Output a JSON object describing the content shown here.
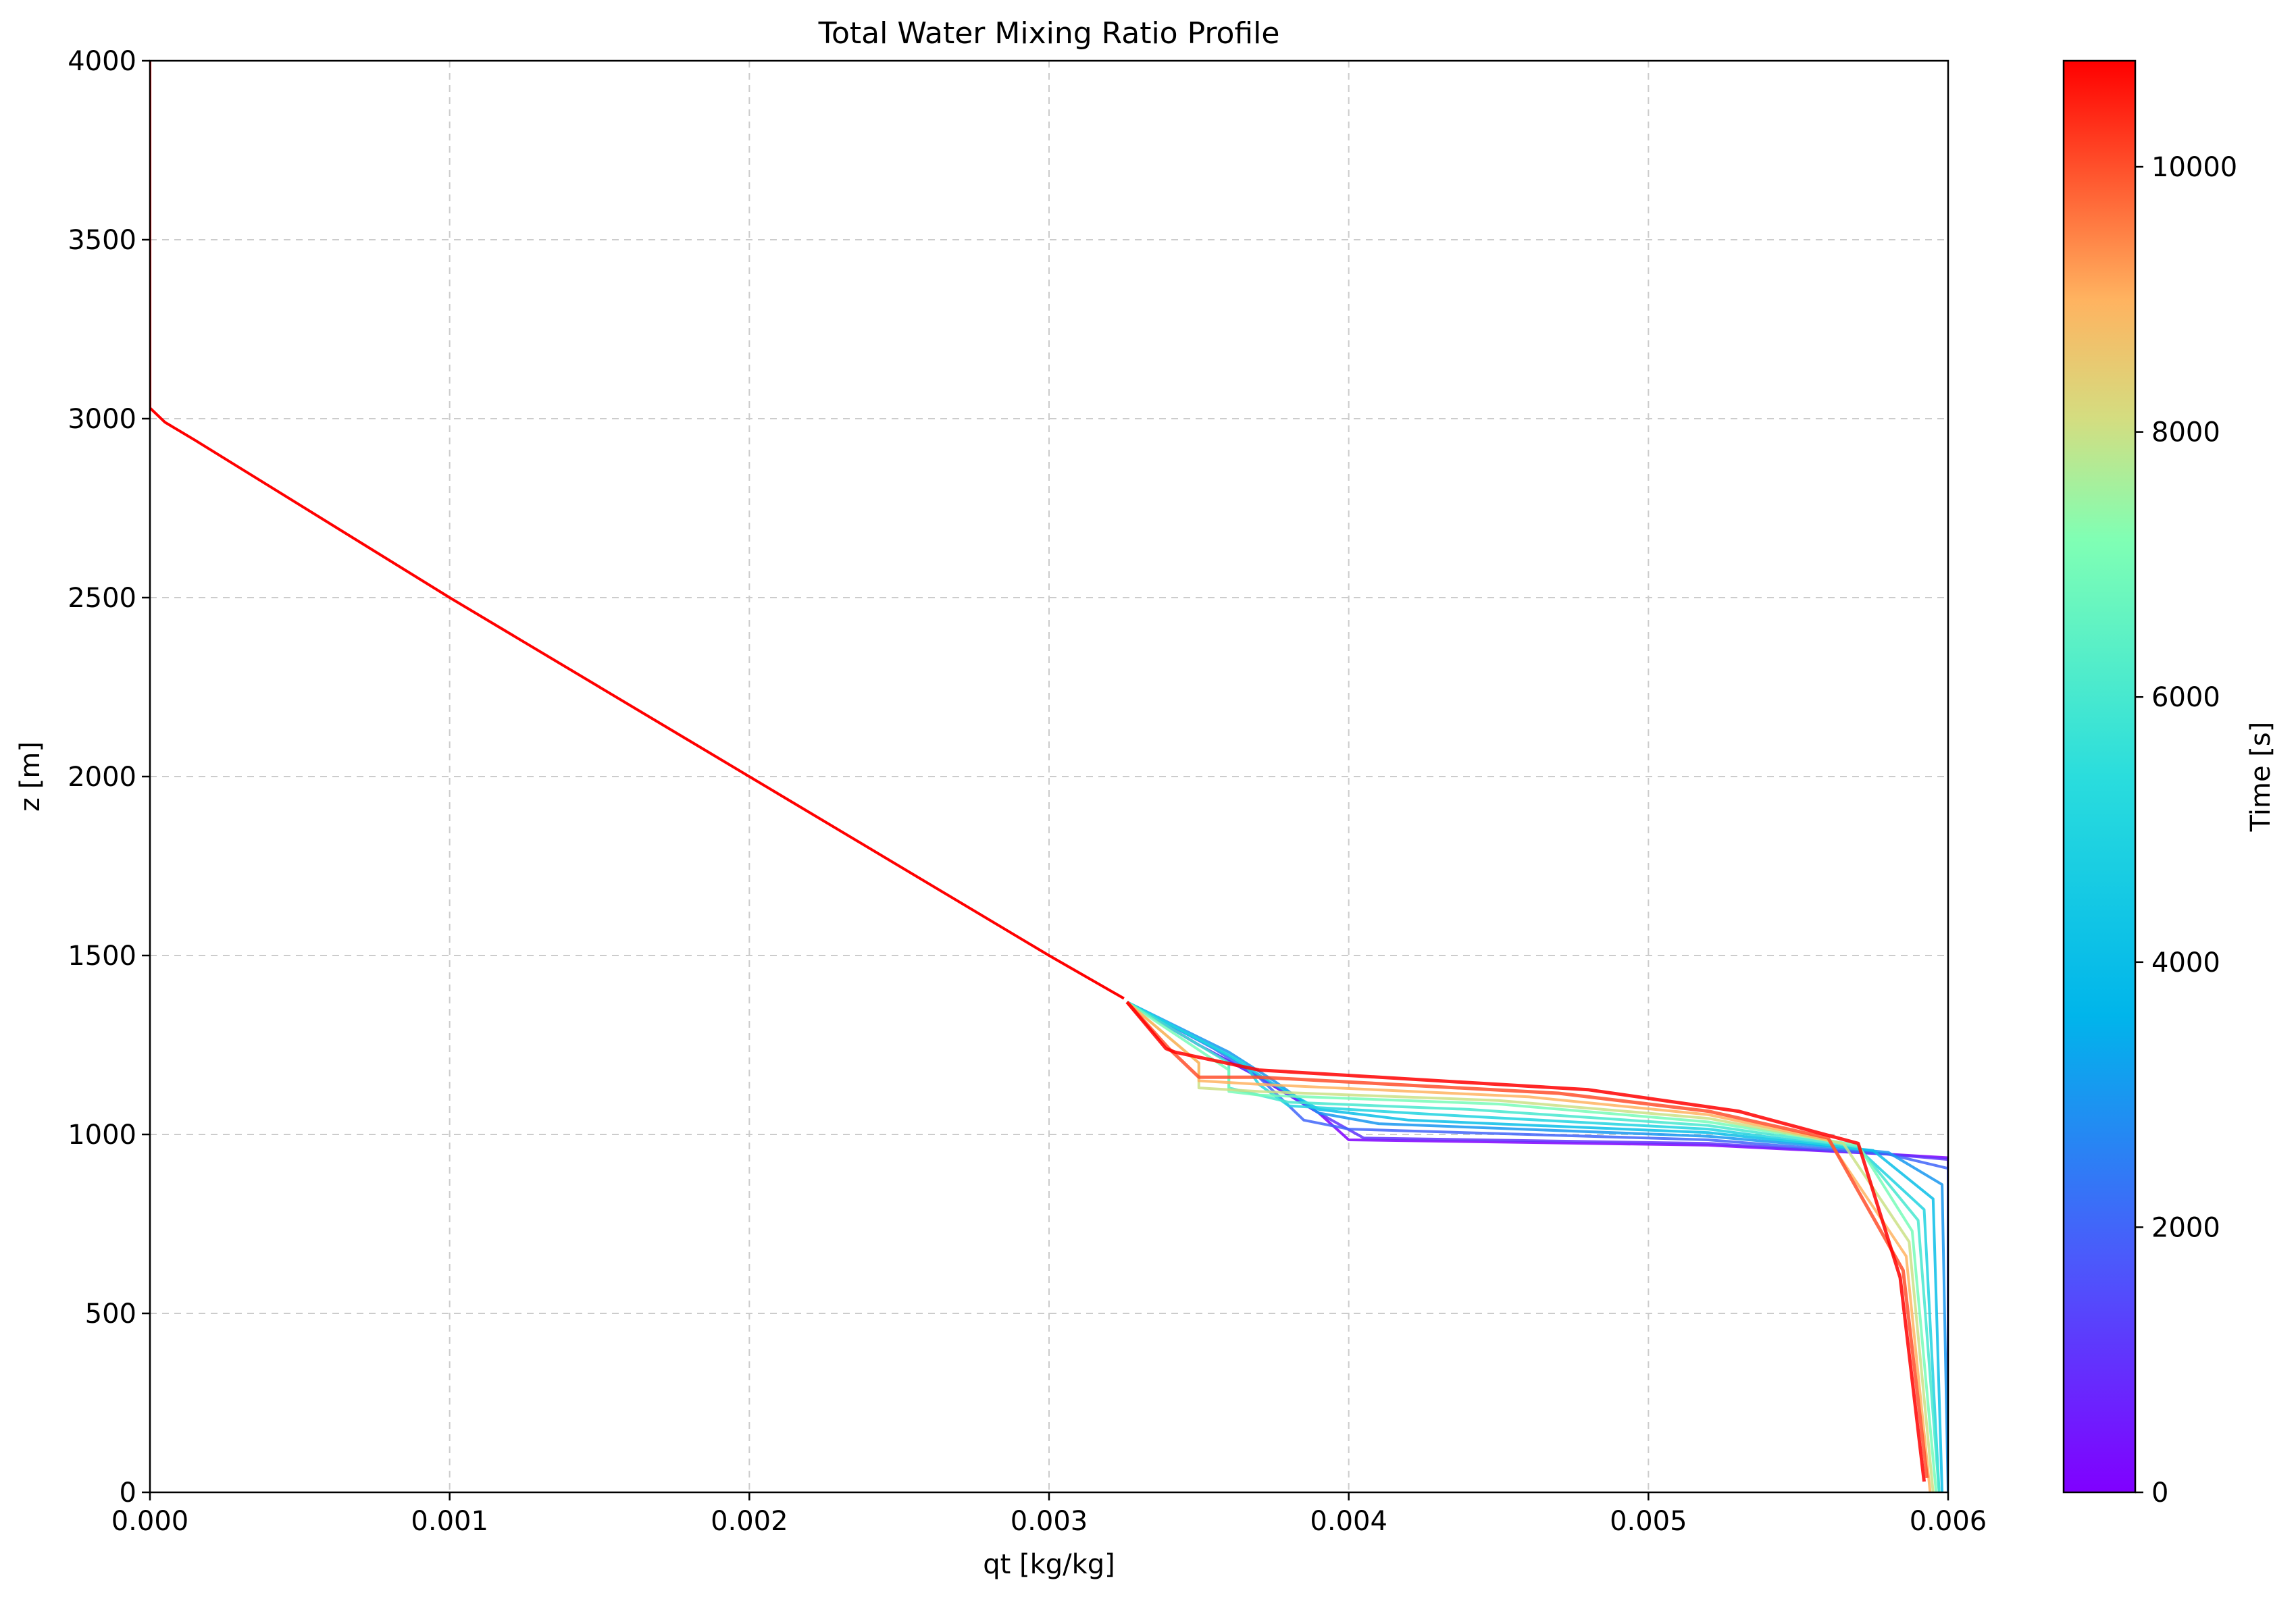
{
  "chart_data": {
    "type": "line",
    "title": "Total Water Mixing Ratio Profile",
    "xlabel": "qt [kg/kg]",
    "ylabel": "z [m]",
    "xlim": [
      0.0,
      0.006
    ],
    "ylim": [
      0,
      4000
    ],
    "x_ticks": [
      "0.000",
      "0.001",
      "0.002",
      "0.003",
      "0.004",
      "0.005",
      "0.006"
    ],
    "y_ticks": [
      "0",
      "500",
      "1000",
      "1500",
      "2000",
      "2500",
      "3000",
      "3500",
      "4000"
    ],
    "grid": true,
    "colorbar": {
      "label": "Time [s]",
      "colormap": "rainbow",
      "range": [
        0,
        10800
      ],
      "ticks": [
        "0",
        "2000",
        "4000",
        "6000",
        "8000",
        "10000"
      ]
    },
    "common_upper_profile": {
      "qt": [
        0.0,
        0.0,
        0.0,
        5e-05,
        0.00015,
        0.001,
        0.002,
        0.003,
        0.00325
      ],
      "z": [
        4000,
        3100,
        3030,
        2990,
        2940,
        2500,
        2000,
        1500,
        1380
      ]
    },
    "series": [
      {
        "time": 0,
        "qt": [
          0.00326,
          0.0035,
          0.0037,
          0.0039,
          0.004,
          0.0052,
          0.0058,
          0.006,
          0.006
        ],
        "z": [
          1370,
          1250,
          1160,
          1060,
          985,
          970,
          945,
          935,
          0
        ]
      },
      {
        "time": 1000,
        "qt": [
          0.00326,
          0.0035,
          0.0037,
          0.0039,
          0.00405,
          0.0052,
          0.0058,
          0.006,
          0.006
        ],
        "z": [
          1370,
          1250,
          1160,
          1060,
          990,
          975,
          945,
          930,
          0
        ]
      },
      {
        "time": 2000,
        "qt": [
          0.00326,
          0.00355,
          0.0037,
          0.00385,
          0.004,
          0.0052,
          0.0058,
          0.006,
          0.006
        ],
        "z": [
          1370,
          1240,
          1160,
          1040,
          1015,
          985,
          945,
          905,
          0
        ]
      },
      {
        "time": 3000,
        "qt": [
          0.00326,
          0.0036,
          0.00375,
          0.0039,
          0.0041,
          0.0052,
          0.0058,
          0.00598,
          0.006
        ],
        "z": [
          1370,
          1230,
          1150,
          1060,
          1030,
          995,
          950,
          860,
          0
        ]
      },
      {
        "time": 4000,
        "qt": [
          0.00326,
          0.0036,
          0.00375,
          0.0039,
          0.0042,
          0.0052,
          0.00575,
          0.00595,
          0.00598
        ],
        "z": [
          1370,
          1220,
          1140,
          1070,
          1040,
          1005,
          955,
          820,
          0
        ]
      },
      {
        "time": 5000,
        "qt": [
          0.00326,
          0.00365,
          0.0037,
          0.0038,
          0.0043,
          0.0052,
          0.0057,
          0.00592,
          0.00597
        ],
        "z": [
          1370,
          1200,
          1140,
          1080,
          1055,
          1015,
          960,
          790,
          0
        ]
      },
      {
        "time": 6000,
        "qt": [
          0.00326,
          0.0036,
          0.0036,
          0.0038,
          0.0044,
          0.0052,
          0.0057,
          0.0059,
          0.00597
        ],
        "z": [
          1370,
          1200,
          1130,
          1090,
          1070,
          1025,
          965,
          760,
          0
        ]
      },
      {
        "time": 7000,
        "qt": [
          0.00326,
          0.0036,
          0.0036,
          0.0037,
          0.0045,
          0.0052,
          0.0057,
          0.00588,
          0.00596
        ],
        "z": [
          1370,
          1180,
          1120,
          1110,
          1085,
          1035,
          970,
          730,
          0
        ]
      },
      {
        "time": 8000,
        "qt": [
          0.00326,
          0.0035,
          0.0035,
          0.0037,
          0.0045,
          0.0052,
          0.00565,
          0.00587,
          0.00595
        ],
        "z": [
          1370,
          1200,
          1130,
          1120,
          1095,
          1045,
          975,
          700,
          0
        ]
      },
      {
        "time": 9000,
        "qt": [
          0.00326,
          0.0035,
          0.0035,
          0.0037,
          0.0046,
          0.0052,
          0.0056,
          0.00586,
          0.00594
        ],
        "z": [
          1370,
          1200,
          1150,
          1140,
          1105,
          1055,
          985,
          660,
          0
        ]
      },
      {
        "time": 10000,
        "qt": [
          0.00326,
          0.0034,
          0.0035,
          0.0037,
          0.0047,
          0.0052,
          0.0056,
          0.00585,
          0.00593
        ],
        "z": [
          1370,
          1240,
          1160,
          1160,
          1115,
          1065,
          990,
          620,
          40
        ]
      },
      {
        "time": 10800,
        "qt": [
          0.00326,
          0.00339,
          0.00342,
          0.0037,
          0.0048,
          0.0053,
          0.0057,
          0.00584,
          0.00592
        ],
        "z": [
          1370,
          1240,
          1230,
          1180,
          1125,
          1065,
          975,
          600,
          30
        ]
      }
    ]
  }
}
